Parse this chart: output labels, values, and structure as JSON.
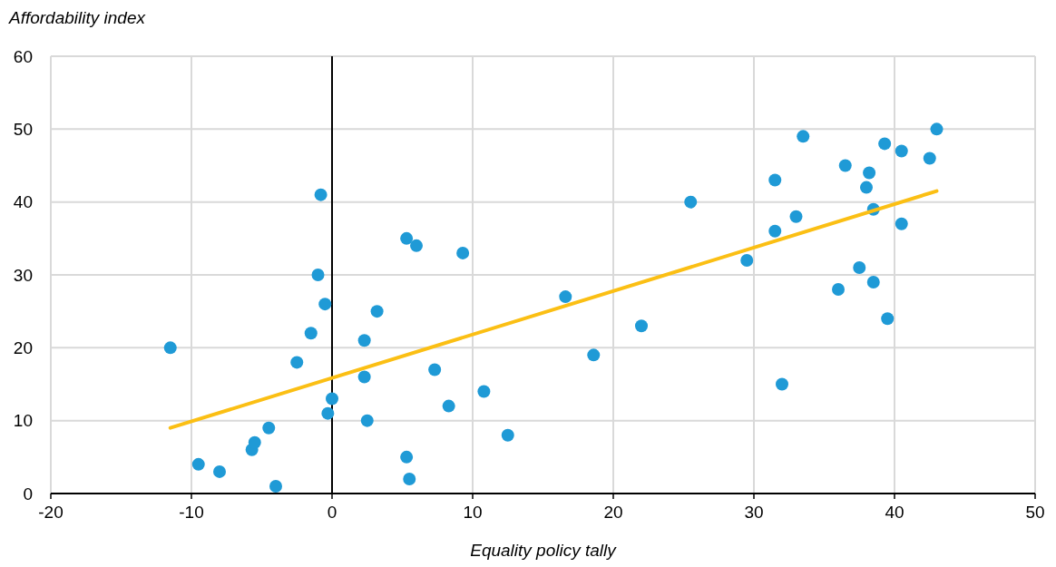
{
  "chart_data": {
    "type": "scatter",
    "xlabel": "Equality policy tally",
    "ylabel": "Affordability index",
    "xlim": [
      -20,
      50
    ],
    "xticks": [
      -20,
      -10,
      0,
      10,
      20,
      30,
      40,
      50
    ],
    "ylim": [
      0,
      60
    ],
    "yticks": [
      0,
      10,
      20,
      30,
      40,
      50,
      60
    ],
    "grid": true,
    "marker": "circle",
    "ref_lines": [
      {
        "axis": "x",
        "value": 0,
        "color": "#000000"
      }
    ],
    "series": [
      {
        "color": "#1f9ad6",
        "x": [
          -11.5,
          -9.5,
          -8,
          -5.7,
          -5.5,
          -4.5,
          -4,
          -2.5,
          -1.5,
          -1,
          -0.8,
          -0.5,
          -0.3,
          0,
          2.3,
          2.3,
          2.5,
          3.2,
          5.3,
          6,
          5.3,
          5.5,
          7.3,
          8.3,
          9.3,
          10.8,
          12.5,
          16.6,
          18.6,
          22,
          25.5,
          29.5,
          31.5,
          31.5,
          32,
          33,
          33.5,
          36,
          36.5,
          37.5,
          38,
          38.2,
          38.5,
          38.5,
          39.3,
          39.5,
          40.5,
          40.5,
          42.5,
          43
        ],
        "values": [
          20,
          4,
          3,
          6,
          7,
          9,
          1,
          18,
          22,
          30,
          41,
          26,
          11,
          13,
          21,
          16,
          10,
          25,
          35,
          34,
          5,
          2,
          17,
          12,
          33,
          14,
          8,
          27,
          19,
          23,
          40,
          32,
          43,
          36,
          15,
          38,
          49,
          28,
          45,
          31,
          42,
          44,
          39,
          29,
          48,
          24,
          47,
          37,
          46,
          50
        ]
      },
      {
        "type": "line",
        "color": "#fbbf14",
        "marker": "none",
        "x": [
          -11.5,
          43
        ],
        "values": [
          9,
          41.5
        ]
      }
    ]
  }
}
